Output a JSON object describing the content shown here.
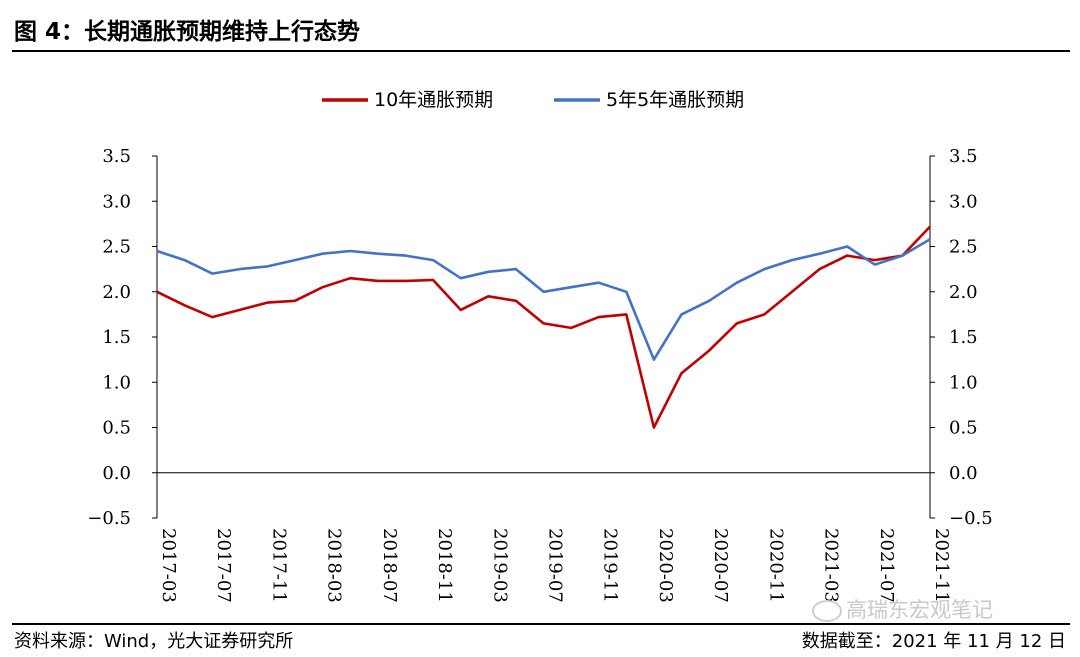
{
  "figure": {
    "title": "图 4：长期通胀预期维持上行态势",
    "source": "资料来源：Wind，光大证券研究所",
    "as_of": "数据截至：2021 年 11 月 12 日",
    "watermark": "高瑞东宏观笔记"
  },
  "colors": {
    "series_10y": "#c00000",
    "series_5y5y": "#4472c4",
    "axis": "#000000"
  },
  "chart_data": {
    "type": "line",
    "title": "图 4：长期通胀预期维持上行态势",
    "x": [
      "2017-03",
      "2017-05",
      "2017-07",
      "2017-09",
      "2017-11",
      "2018-01",
      "2018-03",
      "2018-05",
      "2018-07",
      "2018-09",
      "2018-11",
      "2019-01",
      "2019-03",
      "2019-05",
      "2019-07",
      "2019-09",
      "2019-11",
      "2020-01",
      "2020-03",
      "2020-05",
      "2020-07",
      "2020-09",
      "2020-11",
      "2021-01",
      "2021-03",
      "2021-05",
      "2021-07",
      "2021-09",
      "2021-11"
    ],
    "x_tick_labels": [
      "2017-03",
      "2017-07",
      "2017-11",
      "2018-03",
      "2018-07",
      "2018-11",
      "2019-03",
      "2019-07",
      "2019-11",
      "2020-03",
      "2020-07",
      "2020-11",
      "2021-03",
      "2021-07",
      "2021-11"
    ],
    "series": [
      {
        "name": "10年通胀预期",
        "color": "#c00000",
        "values": [
          2.0,
          1.85,
          1.72,
          1.8,
          1.88,
          1.9,
          2.05,
          2.15,
          2.12,
          2.12,
          2.13,
          1.8,
          1.95,
          1.9,
          1.65,
          1.6,
          1.72,
          1.75,
          0.5,
          1.1,
          1.35,
          1.65,
          1.75,
          2.0,
          2.25,
          2.4,
          2.35,
          2.4,
          2.72
        ]
      },
      {
        "name": "5年5年通胀预期",
        "color": "#4472c4",
        "values": [
          2.45,
          2.35,
          2.2,
          2.25,
          2.28,
          2.35,
          2.42,
          2.45,
          2.42,
          2.4,
          2.35,
          2.15,
          2.22,
          2.25,
          2.0,
          2.05,
          2.1,
          2.0,
          1.25,
          1.75,
          1.9,
          2.1,
          2.25,
          2.35,
          2.42,
          2.5,
          2.3,
          2.4,
          2.58
        ]
      }
    ],
    "y_left": {
      "min": -0.5,
      "max": 3.5,
      "step": 0.5,
      "tick_labels": [
        "3.5",
        "3.0",
        "2.5",
        "2.0",
        "1.5",
        "1.0",
        "0.5",
        "0.0",
        "−0.5"
      ]
    },
    "y_right": {
      "min": -0.5,
      "max": 3.5,
      "step": 0.5,
      "tick_labels": [
        "3.5",
        "3.0",
        "2.5",
        "2.0",
        "1.5",
        "1.0",
        "0.5",
        "0.0",
        "−0.5"
      ]
    },
    "legend": {
      "position": "top-center",
      "entries": [
        "10年通胀预期",
        "5年5年通胀预期"
      ]
    },
    "grid": false
  }
}
